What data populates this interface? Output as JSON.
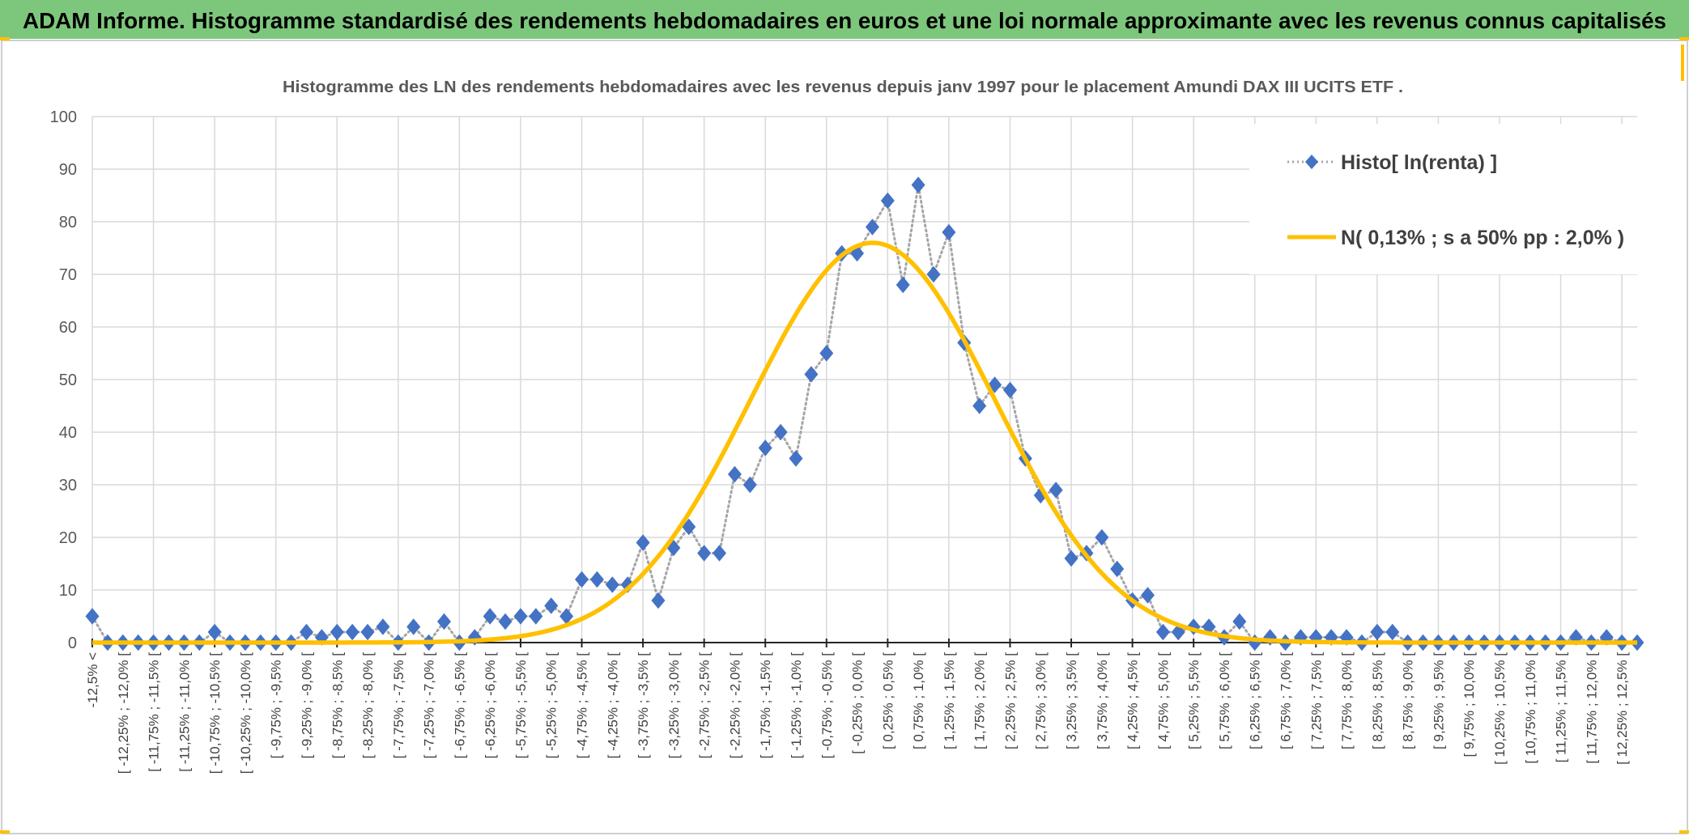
{
  "header": {
    "title": "ADAM Informe. Histogramme standardisé des rendements hebdomadaires en euros et une loi normale approximante avec les revenus connus capitalisés",
    "bar_color": "#7dc77d"
  },
  "chart_data": {
    "type": "line",
    "title": "Histogramme des LN des rendements hebdomadaires avec les revenus depuis janv 1997 pour le placement Amundi DAX III UCITS ETF .",
    "xlabel": "",
    "ylabel": "",
    "ylim": [
      0,
      100
    ],
    "yticks": [
      "0",
      "10",
      "20",
      "30",
      "40",
      "50",
      "60",
      "70",
      "80",
      "90",
      "100"
    ],
    "grid": true,
    "legend_position": "top-right",
    "x_labels": [
      "-12,5% <",
      "[ -12,25% ; -12,0% [",
      "[ -11,75% ; -11,5% [",
      "[ -11,25% ; -11,0% [",
      "[ -10,75% ; -10,5% [",
      "[ -10,25% ; -10,0% [",
      "[ -9,75% ; -9,5% [",
      "[ -9,25% ; -9,0% [",
      "[ -8,75% ; -8,5% [",
      "[ -8,25% ; -8,0% [",
      "[ -7,75% ; -7,5% [",
      "[ -7,25% ; -7,0% [",
      "[ -6,75% ; -6,5% [",
      "[ -6,25% ; -6,0% [",
      "[ -5,75% ; -5,5% [",
      "[ -5,25% ; -5,0% [",
      "[ -4,75% ; -4,5% [",
      "[ -4,25% ; -4,0% [",
      "[ -3,75% ; -3,5% [",
      "[ -3,25% ; -3,0% [",
      "[ -2,75% ; -2,5% [",
      "[ -2,25% ; -2,0% [",
      "[ -1,75% ; -1,5% [",
      "[ -1,25% ; -1,0% [",
      "[ -0,75% ; -0,5% [",
      "[ -0,25% ; 0,0% [",
      "[ 0,25% ; 0,5% [",
      "[ 0,75% ; 1,0% [",
      "[ 1,25% ; 1,5% [",
      "[ 1,75% ; 2,0% [",
      "[ 2,25% ; 2,5% [",
      "[ 2,75% ; 3,0% [",
      "[ 3,25% ; 3,5% [",
      "[ 3,75% ; 4,0% [",
      "[ 4,25% ; 4,5% [",
      "[ 4,75% ; 5,0% [",
      "[ 5,25% ; 5,5% [",
      "[ 5,75% ; 6,0% [",
      "[ 6,25% ; 6,5% [",
      "[ 6,75% ; 7,0% [",
      "[ 7,25% ; 7,5% [",
      "[ 7,75% ; 8,0% [",
      "[ 8,25% ; 8,5% [",
      "[ 8,75% ; 9,0% [",
      "[ 9,25% ; 9,5% [",
      "[ 9,75% ; 10,0% [",
      "[ 10,25% ; 10,5% [",
      "[ 10,75% ; 11,0% [",
      "[ 11,25% ; 11,5% [",
      "[ 11,75% ; 12,0% [",
      "[ 12,25% ; 12,5% ["
    ],
    "series": [
      {
        "name": "Histo[ ln(renta) ]",
        "color": "#4472c4",
        "line_color": "#a6a6a6",
        "values": [
          5,
          0,
          0,
          0,
          0,
          0,
          0,
          0,
          2,
          0,
          0,
          0,
          0,
          0,
          2,
          1,
          2,
          2,
          2,
          3,
          0,
          3,
          0,
          4,
          0,
          1,
          5,
          4,
          5,
          5,
          7,
          5,
          12,
          12,
          11,
          11,
          19,
          8,
          18,
          22,
          17,
          17,
          32,
          30,
          37,
          40,
          35,
          51,
          55,
          74,
          74,
          79,
          84,
          68,
          87,
          70,
          78,
          57,
          45,
          49,
          48,
          35,
          28,
          29,
          16,
          17,
          20,
          14,
          8,
          9,
          2,
          2,
          3,
          3,
          1,
          4,
          0,
          1,
          0,
          1,
          1,
          1,
          1,
          0,
          2,
          2,
          0,
          0,
          0,
          0,
          0,
          0,
          0,
          0,
          0,
          0,
          0,
          1,
          0,
          1,
          0,
          0
        ]
      },
      {
        "name": "N( 0,13% ; s a 50% pp : 2,0% )",
        "color": "#ffc000",
        "mean_pct": 0.13,
        "sd_pct": 2.0,
        "peak": 76
      }
    ]
  }
}
